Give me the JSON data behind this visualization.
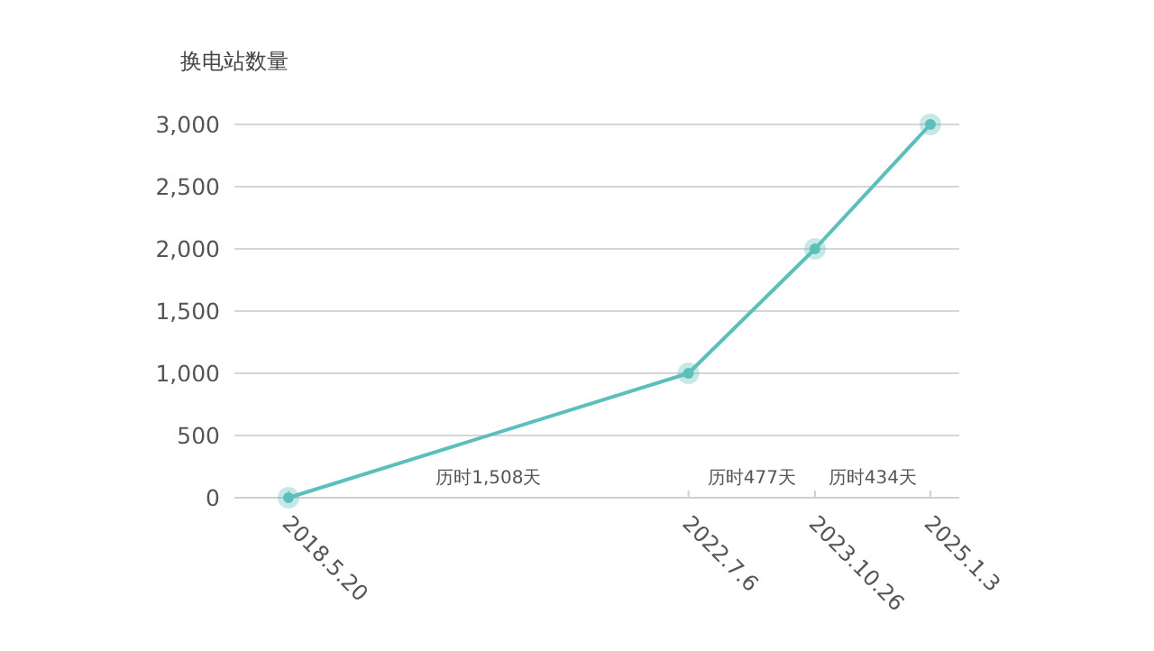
{
  "chart_data": {
    "type": "line",
    "ylabel": "换电站数量",
    "x": [
      "2018-05-20",
      "2022-07-06",
      "2023-10-26",
      "2025-01-03"
    ],
    "series": [
      {
        "color": "#5cbfbb",
        "values": [
          0,
          1000,
          2000,
          3000
        ]
      }
    ],
    "marker": "circle",
    "grid": "y",
    "xlim": [
      "2017-10-28",
      "2025-04-22"
    ],
    "xticks": [
      {
        "value": "2018-05-20",
        "label": "2018.5.20"
      },
      {
        "value": "2022-07-06",
        "label": "2022.7.6"
      },
      {
        "value": "2023-10-26",
        "label": "2023.10.26"
      },
      {
        "value": "2025-01-03",
        "label": "2025.1.3"
      }
    ],
    "ylim": [
      0,
      3000
    ],
    "yticks": [
      0,
      500,
      {
        "value": 1000,
        "label": "1,000"
      },
      {
        "value": 1500,
        "label": "1,500"
      },
      {
        "value": 2000,
        "label": "2,000"
      },
      {
        "value": 2500,
        "label": "2,500"
      },
      {
        "value": 3000,
        "label": "3,000"
      }
    ],
    "annotations": [
      "历时1,508天",
      "历时477天",
      "历时434天"
    ]
  }
}
